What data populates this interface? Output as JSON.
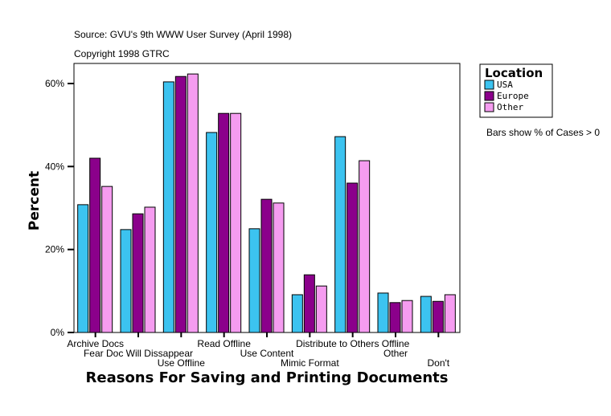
{
  "chart_data": {
    "type": "bar",
    "source": "Source: GVU's 9th WWW User Survey (April 1998)",
    "copyright": "Copyright 1998 GTRC",
    "xlabel": "Reasons For Saving and Printing Documents",
    "ylabel": "Percent",
    "ylim": [
      0,
      65
    ],
    "yticks": [
      0,
      20,
      40,
      60
    ],
    "ytick_labels": [
      "0%",
      "20%",
      "40%",
      "60%"
    ],
    "grid": false,
    "legend": {
      "title": "Location",
      "placement": "right"
    },
    "note": "Bars show % of Cases > 0",
    "categories": [
      "Archive Docs",
      "Fear Doc Will Dissappear",
      "Use Offline",
      "Read Offline",
      "Use Content",
      "Mimic Format",
      "Distribute to Others Offline",
      "Other",
      "Don't"
    ],
    "series": [
      {
        "name": "USA",
        "color": "#3CC3F0",
        "values": [
          30.8,
          24.8,
          60.4,
          48.2,
          25.0,
          9.1,
          47.2,
          9.5,
          8.7
        ]
      },
      {
        "name": "Europe",
        "color": "#8B008B",
        "values": [
          42.0,
          28.6,
          61.7,
          52.8,
          32.1,
          13.9,
          36.0,
          7.2,
          7.5
        ]
      },
      {
        "name": "Other",
        "color": "#F59CF0",
        "values": [
          35.2,
          30.2,
          62.3,
          52.8,
          31.2,
          11.2,
          41.4,
          7.7,
          9.1
        ]
      }
    ]
  }
}
